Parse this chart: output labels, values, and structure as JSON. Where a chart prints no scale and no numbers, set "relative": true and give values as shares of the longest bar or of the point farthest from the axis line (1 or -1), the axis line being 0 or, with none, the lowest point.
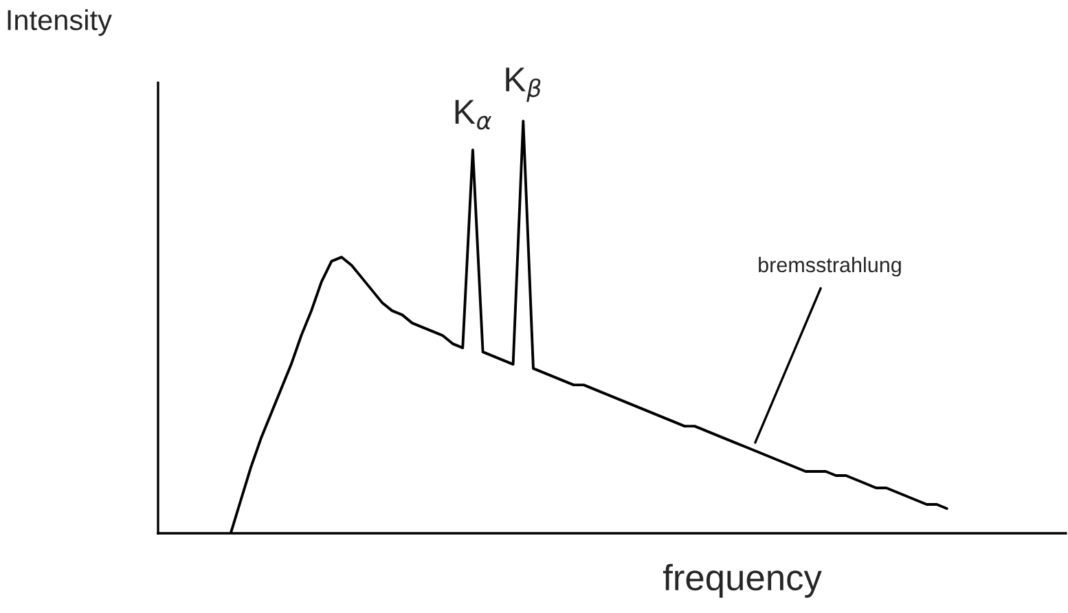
{
  "chart_data": {
    "type": "line",
    "relative": true,
    "xlabel": "frequency",
    "ylabel": "Intensity",
    "categories": [
      null,
      null,
      null,
      null,
      null,
      null,
      null,
      null,
      null,
      null,
      null,
      null,
      null,
      null,
      null,
      null,
      null,
      null,
      null,
      null,
      null,
      null,
      null,
      null,
      null,
      null,
      null,
      null,
      null,
      null,
      null,
      null,
      null,
      null,
      null,
      null,
      null,
      null,
      null,
      null,
      null,
      null,
      null,
      null,
      null,
      null,
      null,
      null,
      null,
      null,
      null,
      null,
      null,
      null,
      null,
      null,
      null,
      null,
      null,
      null,
      null,
      null,
      null,
      null,
      null,
      null,
      null,
      null,
      null,
      null,
      null,
      null
    ],
    "series": [
      {
        "color": "#000000",
        "values": [
          0.0,
          0.08,
          0.16,
          0.23,
          0.29,
          0.35,
          0.41,
          0.48,
          0.54,
          0.61,
          0.66,
          0.67,
          0.65,
          0.62,
          0.59,
          0.56,
          0.54,
          0.53,
          0.51,
          0.5,
          0.49,
          0.48,
          0.46,
          0.45,
          0.93,
          0.44,
          0.43,
          0.42,
          0.41,
          1.0,
          0.4,
          0.39,
          0.38,
          0.37,
          0.36,
          0.36,
          0.35,
          0.34,
          0.33,
          0.32,
          0.31,
          0.3,
          0.29,
          0.28,
          0.27,
          0.26,
          0.26,
          0.25,
          0.24,
          0.23,
          0.22,
          0.21,
          0.2,
          0.19,
          0.18,
          0.17,
          0.16,
          0.15,
          0.15,
          0.15,
          0.14,
          0.14,
          0.13,
          0.12,
          0.11,
          0.11,
          0.1,
          0.09,
          0.08,
          0.07,
          0.07,
          0.06
        ]
      }
    ],
    "annotations": [
      "K$_{α}$",
      "K$_{β}$",
      "bremsstrahlung"
    ],
    "marker": "none",
    "line_style": "solid"
  }
}
